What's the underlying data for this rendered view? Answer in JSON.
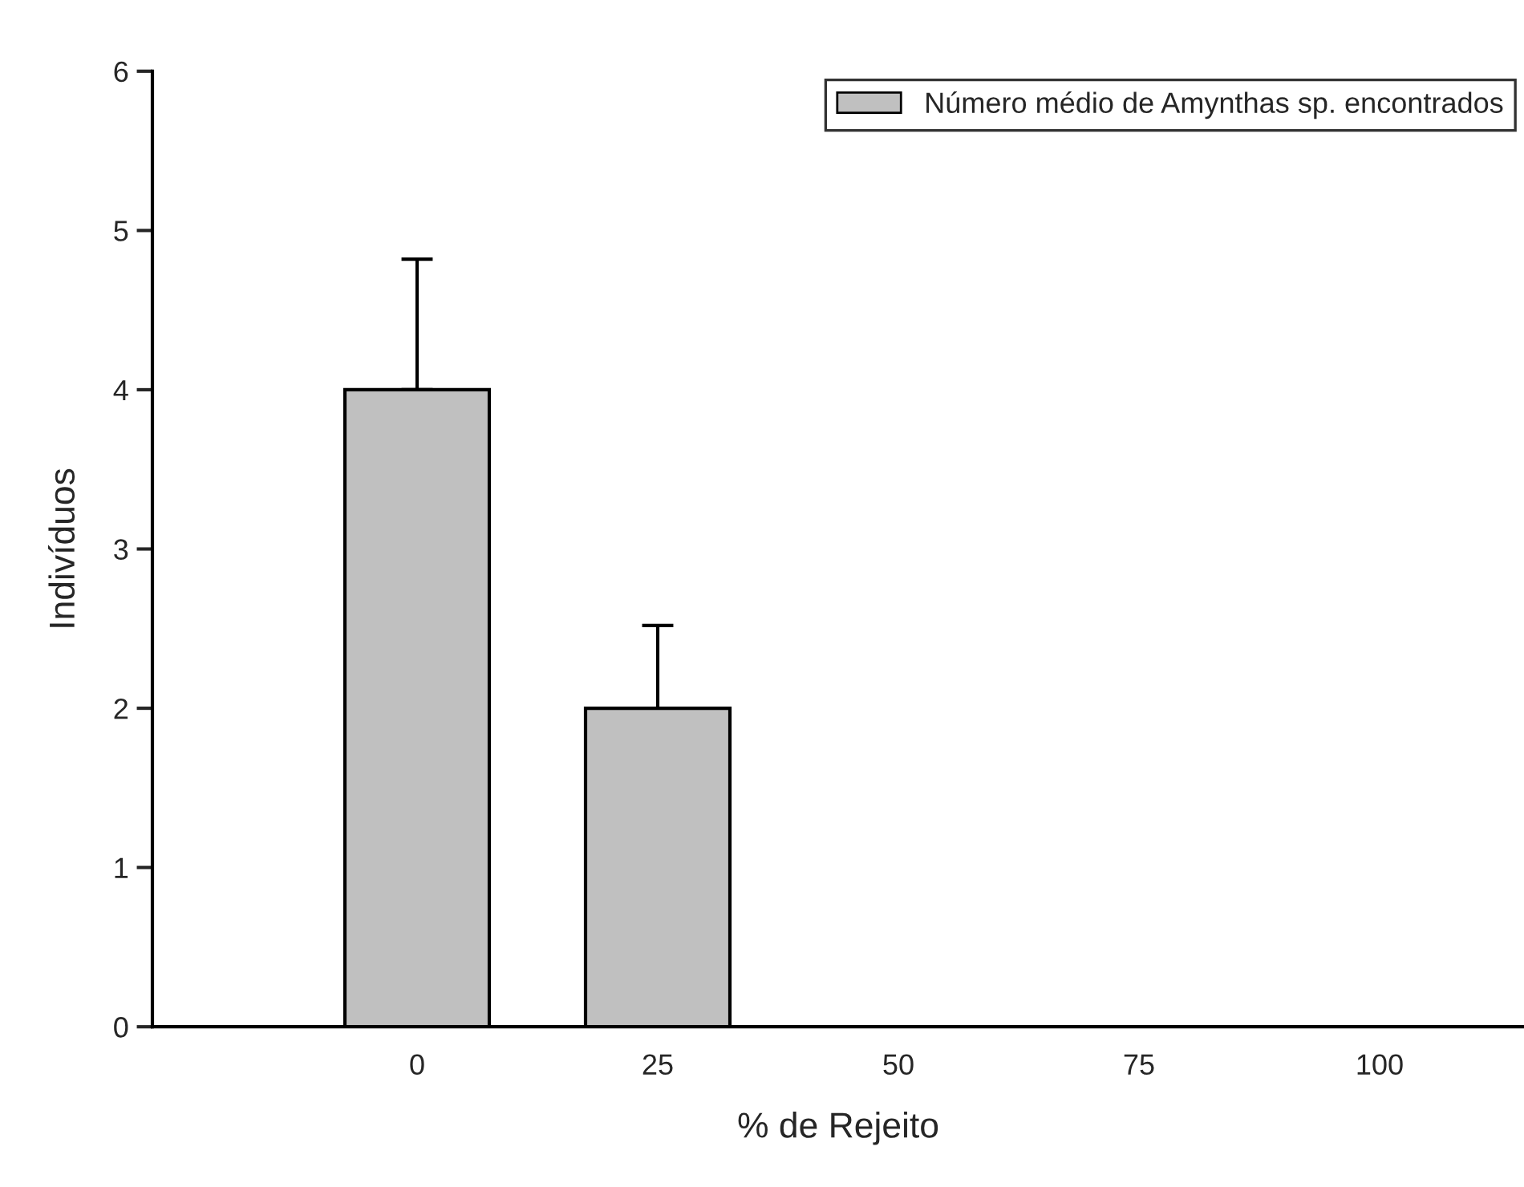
{
  "chart_data": {
    "type": "bar",
    "categories": [
      "0",
      "25",
      "50",
      "75",
      "100"
    ],
    "series": [
      {
        "name": "Número médio de Amynthas sp. encontrados",
        "color": "#c0c0c0",
        "values": [
          4,
          2,
          0,
          0,
          0
        ],
        "errors": [
          [
            4,
            4.82
          ],
          [
            2,
            2.52
          ],
          null,
          null,
          null
        ]
      }
    ],
    "xlabel": "% de Rejeito",
    "ylabel": "Indivíduos",
    "ylim": [
      0,
      6
    ],
    "yticks": [
      0,
      1,
      2,
      3,
      4,
      5,
      6
    ],
    "grid": false,
    "legend": "top right"
  }
}
